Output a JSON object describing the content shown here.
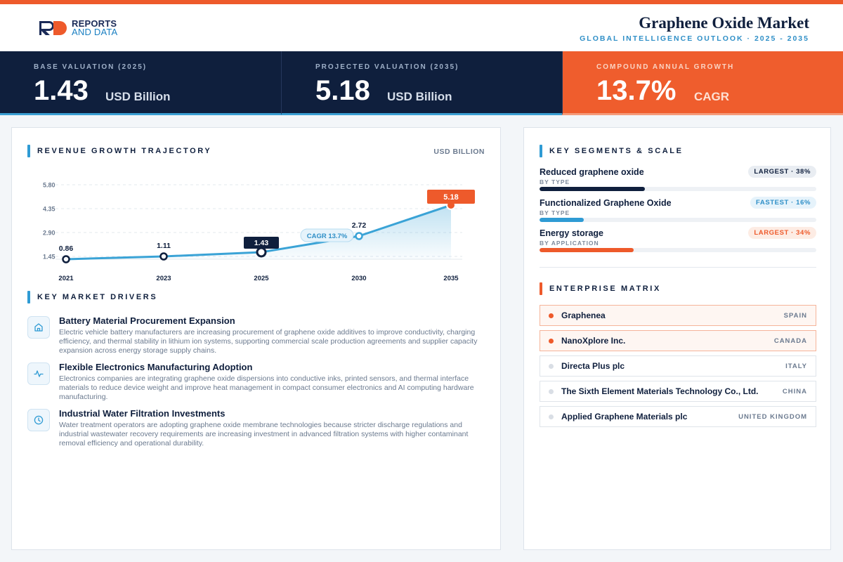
{
  "brand": {
    "line1": "REPORTS",
    "line2": "AND DATA"
  },
  "header": {
    "title": "Graphene Oxide Market",
    "subtitle": "GLOBAL INTELLIGENCE OUTLOOK · 2025 - 2035",
    "accent_color": "#ee5a2b",
    "navy_color": "#0f1f3d",
    "blue_color": "#2f9bd4"
  },
  "kpis": [
    {
      "label": "BASE VALUATION (2025)",
      "value": "1.43",
      "unit": "USD Billion"
    },
    {
      "label": "PROJECTED VALUATION (2035)",
      "value": "5.18",
      "unit": "USD Billion"
    },
    {
      "label": "COMPOUND ANNUAL GROWTH",
      "value": "13.7%",
      "unit": "CAGR"
    }
  ],
  "revenue": {
    "title": "REVENUE GROWTH TRAJECTORY",
    "unit_label": "USD BILLION"
  },
  "chart_data": {
    "type": "area",
    "title": "REVENUE GROWTH TRAJECTORY",
    "ylabel": "USD BILLION",
    "x": [
      "2021",
      "2023",
      "2025",
      "2030",
      "2035"
    ],
    "values": [
      0.86,
      1.11,
      1.43,
      2.72,
      5.18
    ],
    "data_labels": [
      "0.86",
      "1.11",
      "1.43",
      "2.72",
      "5.18"
    ],
    "yticks": [
      "5.80",
      "4.35",
      "2.90",
      "1.45"
    ],
    "ylim": [
      1.45,
      5.8
    ],
    "annotation": "CAGR 13.7%",
    "grid": true,
    "line_color": "#3aa3d6",
    "highlight_color": "#ee5a2b"
  },
  "drivers": {
    "title": "KEY MARKET DRIVERS",
    "items": [
      {
        "icon": "home-icon",
        "title": "Battery Material Procurement Expansion",
        "text": "Electric vehicle battery manufacturers are increasing procurement of graphene oxide additives to improve conductivity, charging efficiency, and thermal stability in lithium ion systems, supporting commercial scale production agreements and supplier capacity expansion across energy storage supply chains."
      },
      {
        "icon": "pulse-icon",
        "title": "Flexible Electronics Manufacturing Adoption",
        "text": "Electronics companies are integrating graphene oxide dispersions into conductive inks, printed sensors, and thermal interface materials to reduce device weight and improve heat management in compact consumer electronics and AI computing hardware manufacturing."
      },
      {
        "icon": "clock-icon",
        "title": "Industrial Water Filtration Investments",
        "text": "Water treatment operators are adopting graphene oxide membrane technologies because stricter discharge regulations and industrial wastewater recovery requirements are increasing investment in advanced filtration systems with higher contaminant removal efficiency and operational durability."
      }
    ]
  },
  "segments": {
    "title": "KEY SEGMENTS & SCALE",
    "items": [
      {
        "name": "Reduced graphene oxide",
        "category": "BY TYPE",
        "badge": "LARGEST · 38%",
        "share": 0.38,
        "color": "#0f1f3d",
        "badge_bg": "#e9edf2",
        "badge_fg": "#0f1f3d"
      },
      {
        "name": "Functionalized Graphene Oxide",
        "category": "BY TYPE",
        "badge": "FASTEST · 16%",
        "share": 0.16,
        "color": "#2f9bd4",
        "badge_bg": "#e6f3fb",
        "badge_fg": "#2f8fc7"
      },
      {
        "name": "Energy storage",
        "category": "BY APPLICATION",
        "badge": "LARGEST · 34%",
        "share": 0.34,
        "color": "#ee5a2b",
        "badge_bg": "#fdece4",
        "badge_fg": "#ee5a2b"
      }
    ]
  },
  "enterprise": {
    "title": "ENTERPRISE MATRIX",
    "items": [
      {
        "name": "Graphenea",
        "country": "SPAIN",
        "highlight": true
      },
      {
        "name": "NanoXplore Inc.",
        "country": "CANADA",
        "highlight": true
      },
      {
        "name": "Directa Plus plc",
        "country": "ITALY",
        "highlight": false
      },
      {
        "name": "The Sixth Element Materials Technology Co., Ltd.",
        "country": "CHINA",
        "highlight": false
      },
      {
        "name": "Applied Graphene Materials plc",
        "country": "UNITED KINGDOM",
        "highlight": false
      }
    ]
  }
}
